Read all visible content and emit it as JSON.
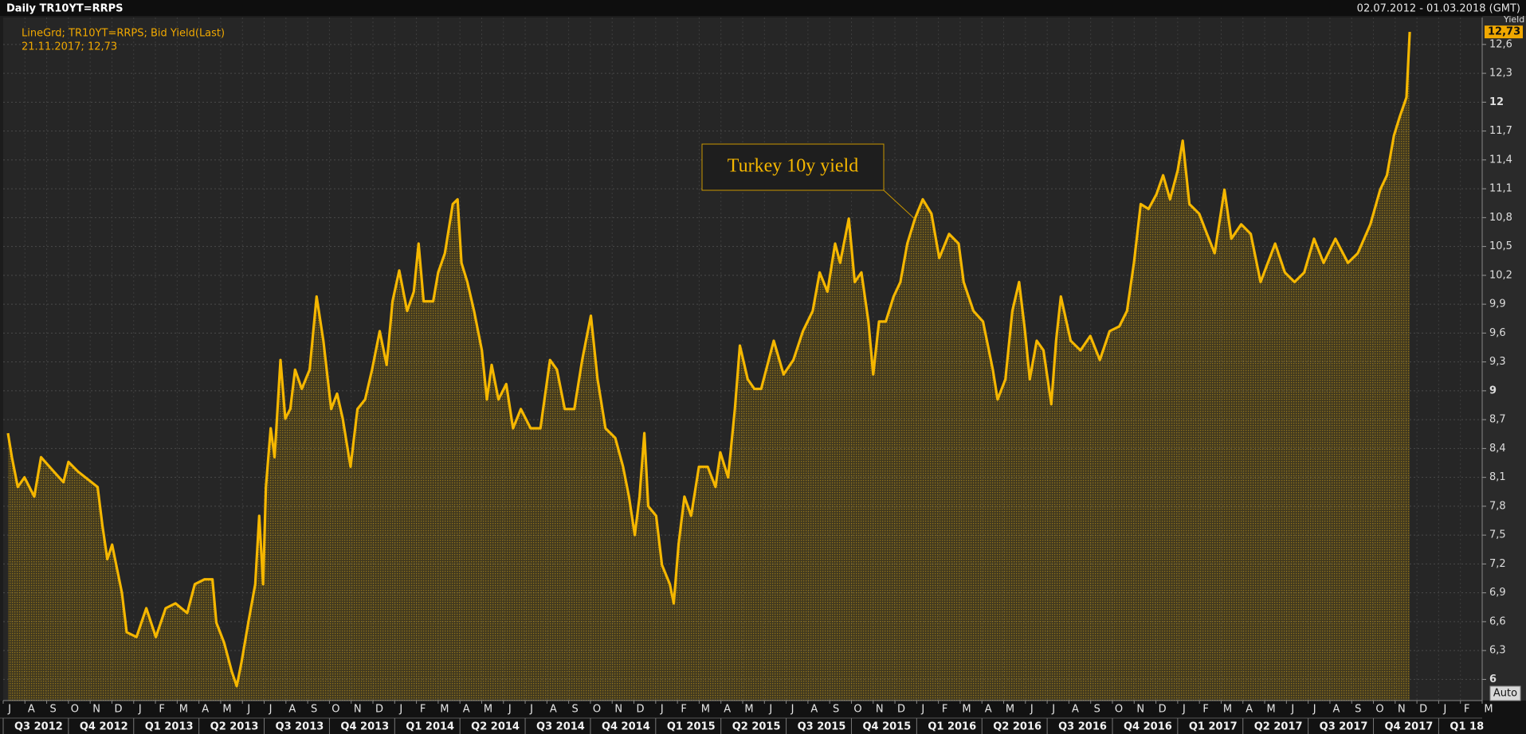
{
  "chart_data": {
    "type": "area-line",
    "title": "Daily TR10YT=RRPS",
    "date_range": "02.07.2012 - 01.03.2018 (GMT)",
    "legend_lines": [
      "LineGrd; TR10YT=RRPS; Bid Yield(Last)",
      "21.11.2017; 12,73"
    ],
    "annotation": "Turkey 10y yield",
    "y_label": "Yield",
    "current_label": {
      "value": 12.73,
      "label": "12,73"
    },
    "button": "Auto",
    "grid": true,
    "x": [
      0.22,
      0.4,
      0.67,
      0.98,
      1.43,
      1.74,
      2.33,
      2.77,
      3.0,
      3.44,
      4.34,
      4.56,
      4.79,
      5.01,
      5.46,
      5.68,
      6.13,
      6.58,
      7.02,
      7.47,
      7.92,
      8.46,
      8.81,
      9.26,
      9.62,
      9.8,
      10.16,
      10.51,
      10.74,
      10.96,
      11.27,
      11.59,
      11.77,
      11.95,
      12.08,
      12.3,
      12.48,
      12.75,
      12.97,
      13.2,
      13.42,
      13.73,
      14.09,
      14.41,
      14.72,
      15.08,
      15.35,
      15.61,
      15.97,
      16.29,
      16.64,
      16.96,
      17.31,
      17.63,
      17.9,
      18.21,
      18.57,
      18.88,
      19.1,
      19.33,
      19.77,
      20.0,
      20.31,
      20.67,
      20.89,
      21.07,
      21.34,
      21.65,
      22.01,
      22.24,
      22.46,
      22.77,
      23.13,
      23.44,
      23.8,
      24.25,
      24.7,
      25.14,
      25.46,
      25.82,
      26.26,
      26.62,
      27.02,
      27.33,
      27.69,
      28.14,
      28.5,
      28.77,
      29.04,
      29.26,
      29.48,
      29.66,
      30.02,
      30.29,
      30.65,
      30.83,
      31.05,
      31.32,
      31.63,
      31.99,
      32.39,
      32.75,
      32.97,
      33.33,
      33.64,
      33.87,
      34.23,
      34.54,
      34.85,
      35.43,
      35.88,
      36.33,
      36.77,
      37.22,
      37.54,
      37.9,
      38.25,
      38.48,
      38.88,
      39.15,
      39.46,
      39.78,
      40.0,
      40.27,
      40.58,
      40.94,
      41.25,
      41.57,
      41.92,
      42.28,
      42.68,
      43.04,
      43.49,
      43.93,
      44.16,
      44.61,
      45.05,
      45.5,
      45.72,
      46.08,
      46.4,
      46.71,
      46.98,
      47.2,
      47.52,
      47.83,
      48.19,
      48.41,
      48.63,
      49.08,
      49.53,
      49.98,
      50.42,
      50.87,
      51.32,
      51.67,
      51.99,
      52.3,
      52.66,
      53.02,
      53.33,
      53.65,
      54.0,
      54.23,
      54.54,
      54.99,
      55.35,
      55.7,
      56.15,
      56.47,
      56.92,
      57.36,
      57.81,
      58.48,
      58.93,
      59.37,
      59.82,
      60.27,
      60.71,
      61.25,
      61.83,
      62.28,
      62.86,
      63.31,
      63.62,
      63.94,
      64.21,
      64.52,
      64.67
    ],
    "series": [
      {
        "color": "#f5b700",
        "values": [
          8.56,
          8.31,
          8.0,
          8.1,
          7.9,
          8.31,
          8.16,
          8.05,
          8.26,
          8.16,
          8.0,
          7.6,
          7.25,
          7.4,
          6.9,
          6.49,
          6.44,
          6.74,
          6.44,
          6.74,
          6.79,
          6.69,
          6.99,
          7.04,
          7.04,
          6.59,
          6.38,
          6.08,
          5.93,
          6.18,
          6.59,
          6.99,
          7.7,
          6.99,
          8.0,
          8.61,
          8.31,
          9.32,
          8.71,
          8.81,
          9.22,
          9.02,
          9.22,
          9.98,
          9.52,
          8.81,
          8.97,
          8.71,
          8.21,
          8.81,
          8.91,
          9.22,
          9.62,
          9.27,
          9.93,
          10.25,
          9.83,
          10.03,
          10.53,
          9.93,
          9.93,
          10.23,
          10.43,
          10.94,
          10.99,
          10.33,
          10.13,
          9.83,
          9.42,
          8.91,
          9.27,
          8.91,
          9.07,
          8.61,
          8.81,
          8.61,
          8.61,
          9.32,
          9.22,
          8.81,
          8.81,
          9.32,
          9.78,
          9.12,
          8.61,
          8.51,
          8.21,
          7.9,
          7.5,
          7.9,
          8.56,
          7.8,
          7.7,
          7.19,
          6.99,
          6.79,
          7.4,
          7.9,
          7.7,
          8.21,
          8.21,
          8.0,
          8.36,
          8.1,
          8.81,
          9.47,
          9.12,
          9.02,
          9.02,
          9.52,
          9.17,
          9.32,
          9.62,
          9.83,
          10.23,
          10.03,
          10.53,
          10.33,
          10.79,
          10.13,
          10.23,
          9.72,
          9.17,
          9.72,
          9.72,
          9.98,
          10.13,
          10.53,
          10.79,
          10.99,
          10.84,
          10.38,
          10.63,
          10.53,
          10.13,
          9.83,
          9.72,
          9.22,
          8.91,
          9.12,
          9.83,
          10.13,
          9.62,
          9.12,
          9.52,
          9.42,
          8.86,
          9.52,
          9.98,
          9.52,
          9.42,
          9.57,
          9.32,
          9.62,
          9.67,
          9.83,
          10.33,
          10.94,
          10.89,
          11.04,
          11.24,
          10.99,
          11.29,
          11.6,
          10.94,
          10.84,
          10.63,
          10.43,
          11.09,
          10.58,
          10.73,
          10.63,
          10.13,
          10.53,
          10.23,
          10.13,
          10.23,
          10.58,
          10.33,
          10.58,
          10.33,
          10.43,
          10.73,
          11.09,
          11.24,
          11.65,
          11.85,
          12.05,
          12.73
        ]
      }
    ],
    "xlim": [
      0,
      68
    ],
    "xticks": [
      {
        "value": 0,
        "label": "J"
      },
      {
        "value": 1,
        "label": "A"
      },
      {
        "value": 2,
        "label": "S"
      },
      {
        "value": 3,
        "label": "O"
      },
      {
        "value": 4,
        "label": "N"
      },
      {
        "value": 5,
        "label": "D"
      },
      {
        "value": 6,
        "label": "J"
      },
      {
        "value": 7,
        "label": "F"
      },
      {
        "value": 8,
        "label": "M"
      },
      {
        "value": 9,
        "label": "A"
      },
      {
        "value": 10,
        "label": "M"
      },
      {
        "value": 11,
        "label": "J"
      },
      {
        "value": 12,
        "label": "J"
      },
      {
        "value": 13,
        "label": "A"
      },
      {
        "value": 14,
        "label": "S"
      },
      {
        "value": 15,
        "label": "O"
      },
      {
        "value": 16,
        "label": "N"
      },
      {
        "value": 17,
        "label": "D"
      },
      {
        "value": 18,
        "label": "J"
      },
      {
        "value": 19,
        "label": "F"
      },
      {
        "value": 20,
        "label": "M"
      },
      {
        "value": 21,
        "label": "A"
      },
      {
        "value": 22,
        "label": "M"
      },
      {
        "value": 23,
        "label": "J"
      },
      {
        "value": 24,
        "label": "J"
      },
      {
        "value": 25,
        "label": "A"
      },
      {
        "value": 26,
        "label": "S"
      },
      {
        "value": 27,
        "label": "O"
      },
      {
        "value": 28,
        "label": "N"
      },
      {
        "value": 29,
        "label": "D"
      },
      {
        "value": 30,
        "label": "J"
      },
      {
        "value": 31,
        "label": "F"
      },
      {
        "value": 32,
        "label": "M"
      },
      {
        "value": 33,
        "label": "A"
      },
      {
        "value": 34,
        "label": "M"
      },
      {
        "value": 35,
        "label": "J"
      },
      {
        "value": 36,
        "label": "J"
      },
      {
        "value": 37,
        "label": "A"
      },
      {
        "value": 38,
        "label": "S"
      },
      {
        "value": 39,
        "label": "O"
      },
      {
        "value": 40,
        "label": "N"
      },
      {
        "value": 41,
        "label": "D"
      },
      {
        "value": 42,
        "label": "J"
      },
      {
        "value": 43,
        "label": "F"
      },
      {
        "value": 44,
        "label": "M"
      },
      {
        "value": 45,
        "label": "A"
      },
      {
        "value": 46,
        "label": "M"
      },
      {
        "value": 47,
        "label": "J"
      },
      {
        "value": 48,
        "label": "J"
      },
      {
        "value": 49,
        "label": "A"
      },
      {
        "value": 50,
        "label": "S"
      },
      {
        "value": 51,
        "label": "O"
      },
      {
        "value": 52,
        "label": "N"
      },
      {
        "value": 53,
        "label": "D"
      },
      {
        "value": 54,
        "label": "J"
      },
      {
        "value": 55,
        "label": "F"
      },
      {
        "value": 56,
        "label": "M"
      },
      {
        "value": 57,
        "label": "A"
      },
      {
        "value": 58,
        "label": "M"
      },
      {
        "value": 59,
        "label": "J"
      },
      {
        "value": 60,
        "label": "J"
      },
      {
        "value": 61,
        "label": "A"
      },
      {
        "value": 62,
        "label": "S"
      },
      {
        "value": 63,
        "label": "O"
      },
      {
        "value": 64,
        "label": "N"
      },
      {
        "value": 65,
        "label": "D"
      },
      {
        "value": 66,
        "label": "J"
      },
      {
        "value": 67,
        "label": "F"
      },
      {
        "value": 68,
        "label": "M"
      }
    ],
    "quarters": [
      {
        "value": 0,
        "label": "Q3 2012"
      },
      {
        "value": 3,
        "label": "Q4 2012"
      },
      {
        "value": 6,
        "label": "Q1 2013"
      },
      {
        "value": 9,
        "label": "Q2 2013"
      },
      {
        "value": 12,
        "label": "Q3 2013"
      },
      {
        "value": 15,
        "label": "Q4 2013"
      },
      {
        "value": 18,
        "label": "Q1 2014"
      },
      {
        "value": 21,
        "label": "Q2 2014"
      },
      {
        "value": 24,
        "label": "Q3 2014"
      },
      {
        "value": 27,
        "label": "Q4 2014"
      },
      {
        "value": 30,
        "label": "Q1 2015"
      },
      {
        "value": 33,
        "label": "Q2 2015"
      },
      {
        "value": 36,
        "label": "Q3 2015"
      },
      {
        "value": 39,
        "label": "Q4 2015"
      },
      {
        "value": 42,
        "label": "Q1 2016"
      },
      {
        "value": 45,
        "label": "Q2 2016"
      },
      {
        "value": 48,
        "label": "Q3 2016"
      },
      {
        "value": 51,
        "label": "Q4 2016"
      },
      {
        "value": 54,
        "label": "Q1 2017"
      },
      {
        "value": 57,
        "label": "Q2 2017"
      },
      {
        "value": 60,
        "label": "Q3 2017"
      },
      {
        "value": 63,
        "label": "Q4 2017"
      },
      {
        "value": 66,
        "label": "Q1 18"
      }
    ],
    "ylim": [
      5.78,
      12.88
    ],
    "yticks": [
      6,
      {
        "value": 6.3,
        "label": "6,3"
      },
      {
        "value": 6.6,
        "label": "6,6"
      },
      {
        "value": 6.9,
        "label": "6,9"
      },
      {
        "value": 7.2,
        "label": "7,2"
      },
      {
        "value": 7.5,
        "label": "7,5"
      },
      {
        "value": 7.8,
        "label": "7,8"
      },
      {
        "value": 8.1,
        "label": "8,1"
      },
      {
        "value": 8.4,
        "label": "8,4"
      },
      {
        "value": 8.7,
        "label": "8,7"
      },
      9,
      {
        "value": 9.3,
        "label": "9,3"
      },
      {
        "value": 9.6,
        "label": "9,6"
      },
      {
        "value": 9.9,
        "label": "9,9"
      },
      {
        "value": 10.2,
        "label": "10,2"
      },
      {
        "value": 10.5,
        "label": "10,5"
      },
      {
        "value": 10.8,
        "label": "10,8"
      },
      {
        "value": 11.1,
        "label": "11,1"
      },
      {
        "value": 11.4,
        "label": "11,4"
      },
      {
        "value": 11.7,
        "label": "11,7"
      },
      12,
      {
        "value": 12.3,
        "label": "12,3"
      },
      {
        "value": 12.6,
        "label": "12,6"
      }
    ]
  }
}
